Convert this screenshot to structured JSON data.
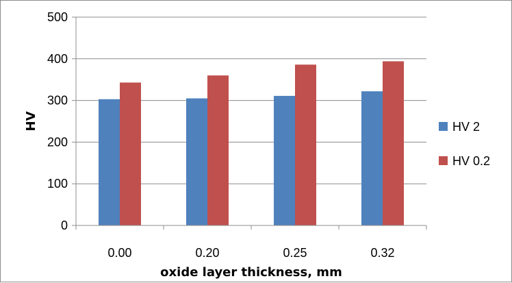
{
  "chart_data": {
    "type": "bar",
    "categories": [
      "0.00",
      "0.20",
      "0.25",
      "0.32"
    ],
    "series": [
      {
        "name": "HV 2",
        "values": [
          303,
          305,
          311,
          322
        ],
        "color": "#4F81BD"
      },
      {
        "name": "HV 0.2",
        "values": [
          343,
          360,
          386,
          394
        ],
        "color": "#C0504D"
      }
    ],
    "xlabel": "oxide layer thickness, mm",
    "ylabel": "HV",
    "ylim": [
      0,
      500
    ],
    "yticks": [
      0,
      100,
      200,
      300,
      400,
      500
    ],
    "grid": true,
    "legend": "right"
  }
}
